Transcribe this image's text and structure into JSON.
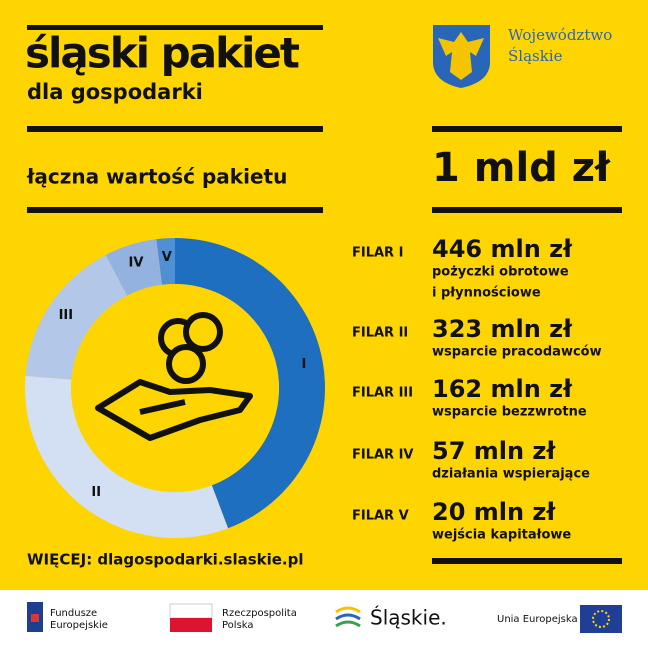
{
  "header": {
    "title": "śląski pakiet",
    "subtitle": "dla gospodarki"
  },
  "org": {
    "name_lines": [
      "Województwo",
      "Śląskie"
    ]
  },
  "total": {
    "label": "łączna wartość pakietu",
    "value": "1 mld zł"
  },
  "chart_data": {
    "type": "pie",
    "categories": [
      "I",
      "II",
      "III",
      "IV",
      "V"
    ],
    "values": [
      446,
      323,
      162,
      57,
      20
    ],
    "value_labels": [
      "446 mln zł",
      "323 mln zł",
      "162 mln zł",
      "57 mln zł",
      "20 mln zł"
    ],
    "colors": [
      "#1f6fc0",
      "#d3dff2",
      "#b3c7e9",
      "#93b2df",
      "#4f8fd4"
    ]
  },
  "pillars": [
    {
      "name": "FILAR I",
      "description": [
        "pożyczki obrotowe",
        "i płynnościowe"
      ]
    },
    {
      "name": "FILAR II",
      "description": [
        "wsparcie pracodawców"
      ]
    },
    {
      "name": "FILAR III",
      "description": [
        "wsparcie bezzwrotne"
      ]
    },
    {
      "name": "FILAR IV",
      "description": [
        "działania wspierające"
      ]
    },
    {
      "name": "FILAR V",
      "description": [
        "wejścia kapitałowe"
      ]
    }
  ],
  "more": "WIĘCEJ: dlagospodarki.slaskie.pl",
  "footer": {
    "logos": [
      {
        "lines": [
          "Fundusze",
          "Europejskie"
        ]
      },
      {
        "lines": [
          "Rzeczpospolita",
          "Polska"
        ]
      },
      {
        "lines": [
          "Śląskie."
        ]
      },
      {
        "lines": [
          "Unia Europejska"
        ]
      }
    ]
  }
}
